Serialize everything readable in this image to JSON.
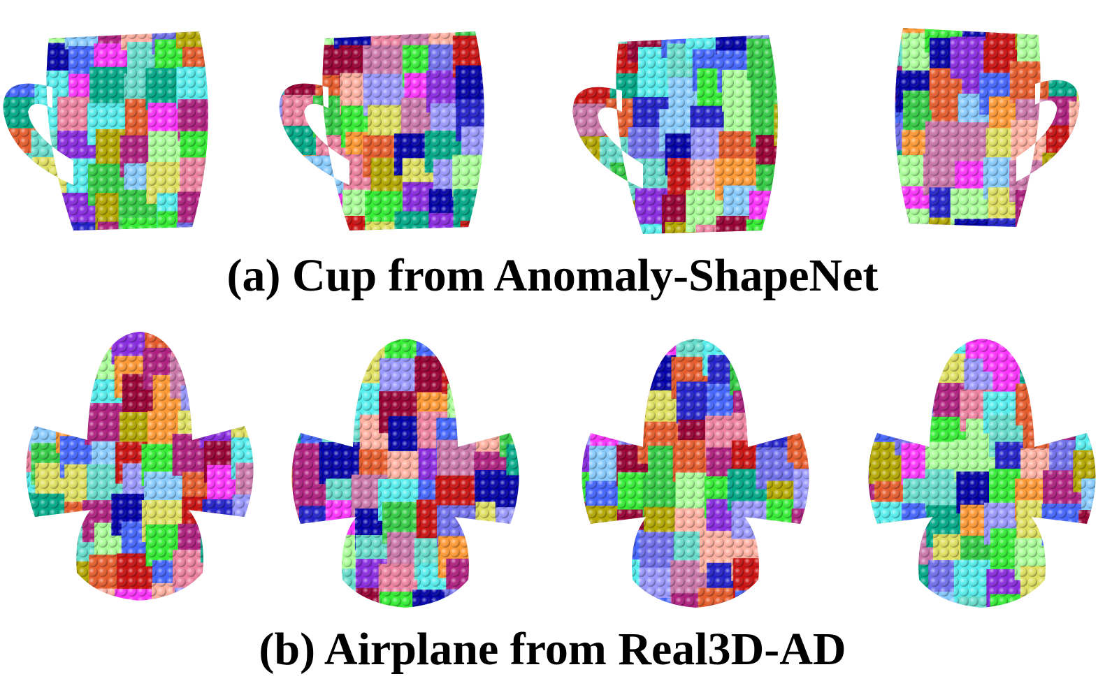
{
  "figure": {
    "captions": [
      "(a) Cup from Anomaly-ShapeNet",
      "(b) Airplane from Real3D-AD"
    ]
  }
}
